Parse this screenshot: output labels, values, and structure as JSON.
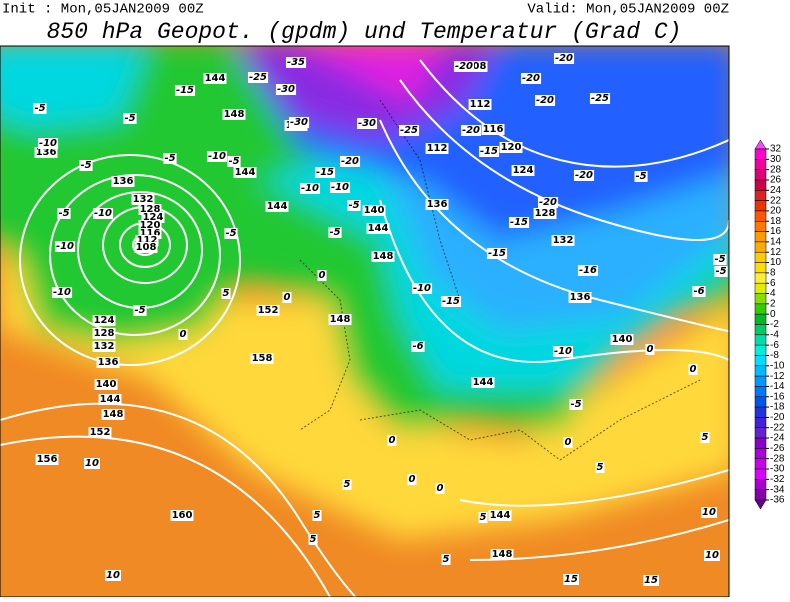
{
  "header": {
    "init": "Init : Mon,05JAN2009 00Z",
    "valid": "Valid: Mon,05JAN2009 00Z",
    "title": "850 hPa Geopot. (gpdm) und Temperatur (Grad C)"
  },
  "map": {
    "height_labels": [
      "144",
      "148",
      "148",
      "136",
      "136",
      "132",
      "128",
      "124",
      "120",
      "116",
      "112",
      "108",
      "144",
      "144",
      "140",
      "144",
      "148",
      "136",
      "152",
      "148",
      "158",
      "124",
      "128",
      "132",
      "136",
      "140",
      "144",
      "148",
      "152",
      "156",
      "160",
      "108",
      "112",
      "116",
      "120",
      "124",
      "128",
      "132",
      "136",
      "140",
      "144",
      "144",
      "148",
      "112"
    ],
    "temperature_labels": [
      "-5",
      "-10",
      "-15",
      "-5",
      "-5",
      "-10",
      "-5",
      "-5",
      "-5",
      "-10",
      "-10",
      "-10",
      "-5",
      "0",
      "0",
      "5",
      "0",
      "-5",
      "-5",
      "-5",
      "-10",
      "-10",
      "-15",
      "-20",
      "-25",
      "-30",
      "-35",
      "-30",
      "-30",
      "-25",
      "-20",
      "-20",
      "-20",
      "-20",
      "-25",
      "-20",
      "-15",
      "-20",
      "-20",
      "-15",
      "-15",
      "-16",
      "-10",
      "-15",
      "-10",
      "-6",
      "-5",
      "0",
      "0",
      "-5",
      "-5",
      "-6",
      "-5",
      "5",
      "5",
      "0",
      "0",
      "0",
      "0",
      "5",
      "5",
      "5",
      "5",
      "5",
      "10",
      "10",
      "15",
      "15",
      "10",
      "10"
    ]
  },
  "colorbar": {
    "ticks": [
      32,
      30,
      28,
      26,
      24,
      22,
      20,
      18,
      16,
      14,
      12,
      10,
      8,
      6,
      4,
      2,
      0,
      -2,
      -4,
      -6,
      -8,
      -10,
      -12,
      -14,
      -16,
      -18,
      -20,
      -22,
      -24,
      -26,
      -28,
      -30,
      -32,
      -34,
      -36
    ],
    "colors": [
      "#ff44ff",
      "#ff00cc",
      "#ee0099",
      "#dd0077",
      "#cc0044",
      "#dd2222",
      "#ee3300",
      "#ff5500",
      "#ff7700",
      "#ff9900",
      "#ffaa00",
      "#ffcc00",
      "#ffdd00",
      "#ffee33",
      "#ddee00",
      "#88dd00",
      "#33cc00",
      "#00bb22",
      "#00cc66",
      "#00ddaa",
      "#00eedd",
      "#00ddff",
      "#00bbff",
      "#0099ff",
      "#0077ff",
      "#0055ee",
      "#2233dd",
      "#4422dd",
      "#6622cc",
      "#8800cc",
      "#aa00dd",
      "#cc00ee",
      "#dd00ff",
      "#aa00cc",
      "#8800aa",
      "#660088"
    ]
  }
}
